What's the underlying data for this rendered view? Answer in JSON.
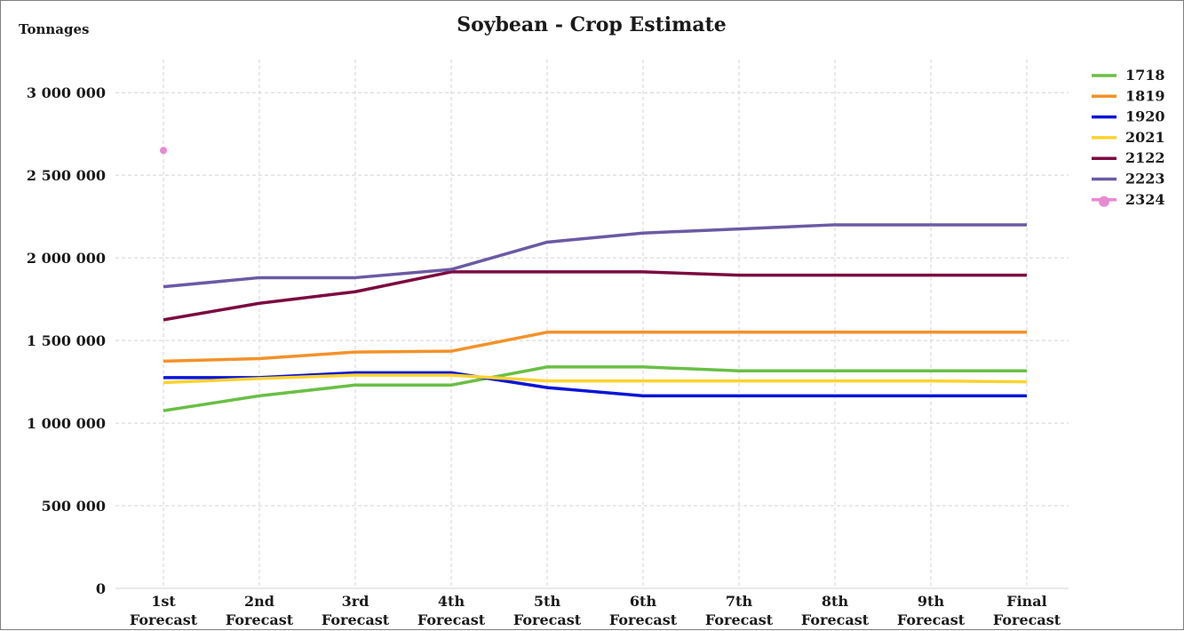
{
  "chart_data": {
    "type": "line",
    "title": "Soybean - Crop Estimate",
    "ylabel": "Tonnages",
    "xlabel": "",
    "categories": [
      [
        "1st",
        "Forecast"
      ],
      [
        "2nd",
        "Forecast"
      ],
      [
        "3rd",
        "Forecast"
      ],
      [
        "4th",
        "Forecast"
      ],
      [
        "5th",
        "Forecast"
      ],
      [
        "6th",
        "Forecast"
      ],
      [
        "7th",
        "Forecast"
      ],
      [
        "8th",
        "Forecast"
      ],
      [
        "9th",
        "Forecast"
      ],
      [
        "Final",
        "Forecast"
      ]
    ],
    "ylim": [
      0,
      3200000
    ],
    "yticks": [
      0,
      500000,
      1000000,
      1500000,
      2000000,
      2500000,
      3000000
    ],
    "ytick_labels": [
      "0",
      "500 000",
      "1 000 000",
      "1 500 000",
      "2 000 000",
      "2 500 000",
      "3 000 000"
    ],
    "grid": true,
    "legend_position": "right",
    "series": [
      {
        "name": "1718",
        "color": "#6abf45",
        "marker": false,
        "values": [
          1075000,
          1165000,
          1230000,
          1230000,
          1340000,
          1340000,
          1316000,
          1316000,
          1316000,
          1316000
        ]
      },
      {
        "name": "1819",
        "color": "#f39229",
        "marker": false,
        "values": [
          1375000,
          1390000,
          1430000,
          1435000,
          1550000,
          1550000,
          1550000,
          1550000,
          1550000,
          1550000
        ]
      },
      {
        "name": "1920",
        "color": "#0a14d9",
        "marker": false,
        "values": [
          1275000,
          1275000,
          1305000,
          1305000,
          1215000,
          1165000,
          1165000,
          1165000,
          1165000,
          1165000
        ]
      },
      {
        "name": "2021",
        "color": "#fcd32f",
        "marker": false,
        "values": [
          1245000,
          1270000,
          1290000,
          1290000,
          1255000,
          1255000,
          1255000,
          1255000,
          1255000,
          1250000
        ]
      },
      {
        "name": "2122",
        "color": "#7b0a3f",
        "marker": false,
        "values": [
          1625000,
          1725000,
          1795000,
          1915000,
          1915000,
          1915000,
          1895000,
          1895000,
          1895000,
          1895000
        ]
      },
      {
        "name": "2223",
        "color": "#6b5aa4",
        "marker": false,
        "values": [
          1825000,
          1880000,
          1880000,
          1930000,
          2095000,
          2150000,
          2175000,
          2200000,
          2200000,
          2200000
        ]
      },
      {
        "name": "2324",
        "color": "#e88ad2",
        "marker": true,
        "values": [
          2650000,
          null,
          null,
          null,
          null,
          null,
          null,
          null,
          null,
          null
        ]
      }
    ]
  }
}
